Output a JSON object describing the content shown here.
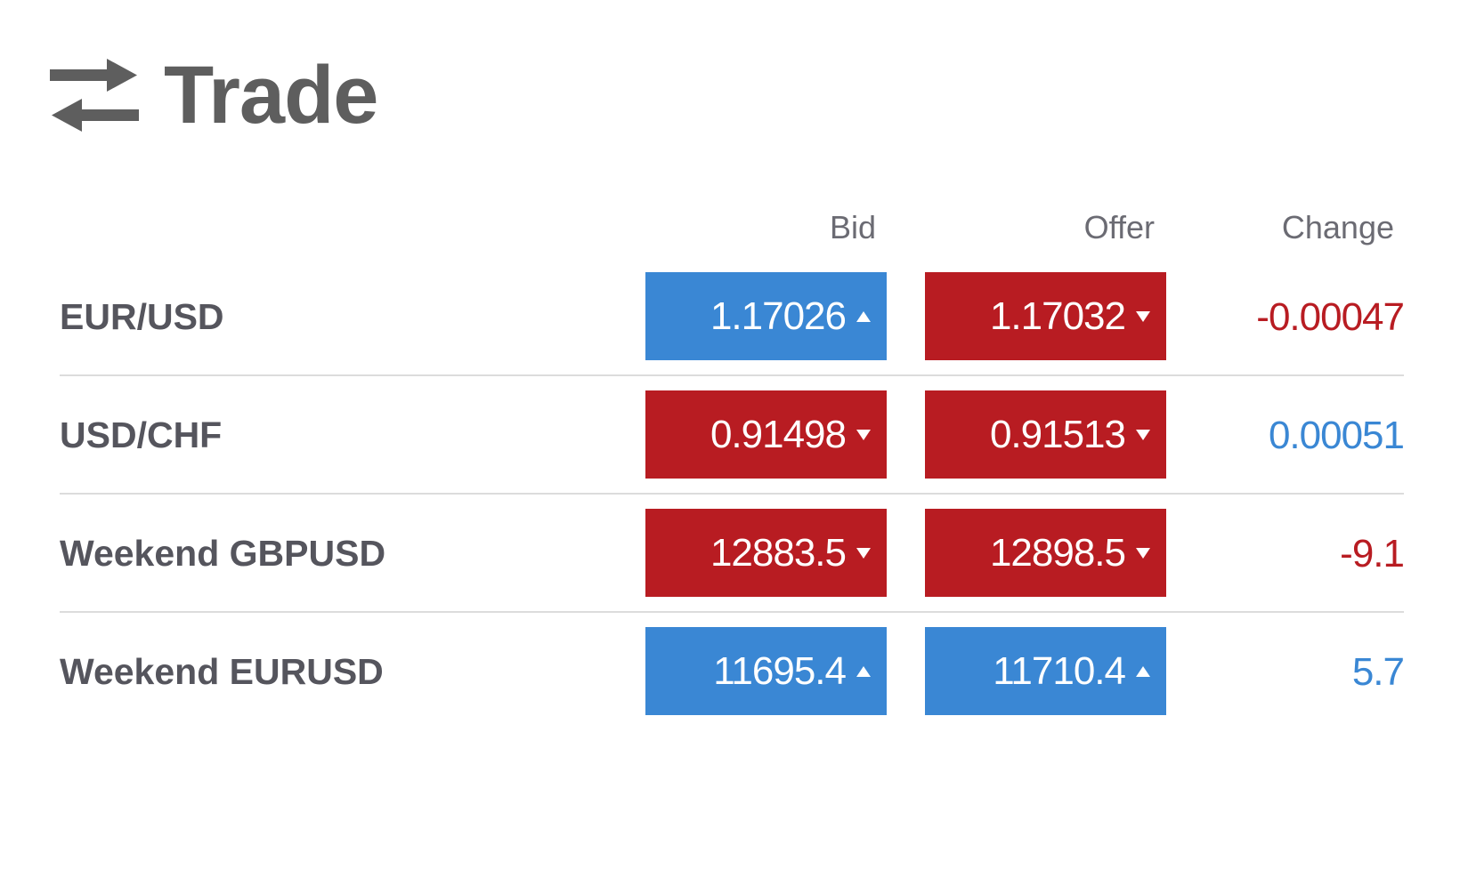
{
  "header": {
    "title": "Trade",
    "icon": "swap-arrows-icon"
  },
  "columns": {
    "bid": "Bid",
    "offer": "Offer",
    "change": "Change"
  },
  "colors": {
    "up": "#3a87d4",
    "down": "#b81c22",
    "text": "#55555d"
  },
  "rows": [
    {
      "instrument": "EUR/USD",
      "bid": "1.17026",
      "bid_direction": "up",
      "offer": "1.17032",
      "offer_direction": "down",
      "change": "-0.00047",
      "change_sign": "negative"
    },
    {
      "instrument": "USD/CHF",
      "bid": "0.91498",
      "bid_direction": "down",
      "offer": "0.91513",
      "offer_direction": "down",
      "change": "0.00051",
      "change_sign": "positive"
    },
    {
      "instrument": "Weekend GBPUSD",
      "bid": "12883.5",
      "bid_direction": "down",
      "offer": "12898.5",
      "offer_direction": "down",
      "change": "-9.1",
      "change_sign": "negative"
    },
    {
      "instrument": "Weekend EURUSD",
      "bid": "11695.4",
      "bid_direction": "up",
      "offer": "11710.4",
      "offer_direction": "up",
      "change": "5.7",
      "change_sign": "positive"
    }
  ]
}
